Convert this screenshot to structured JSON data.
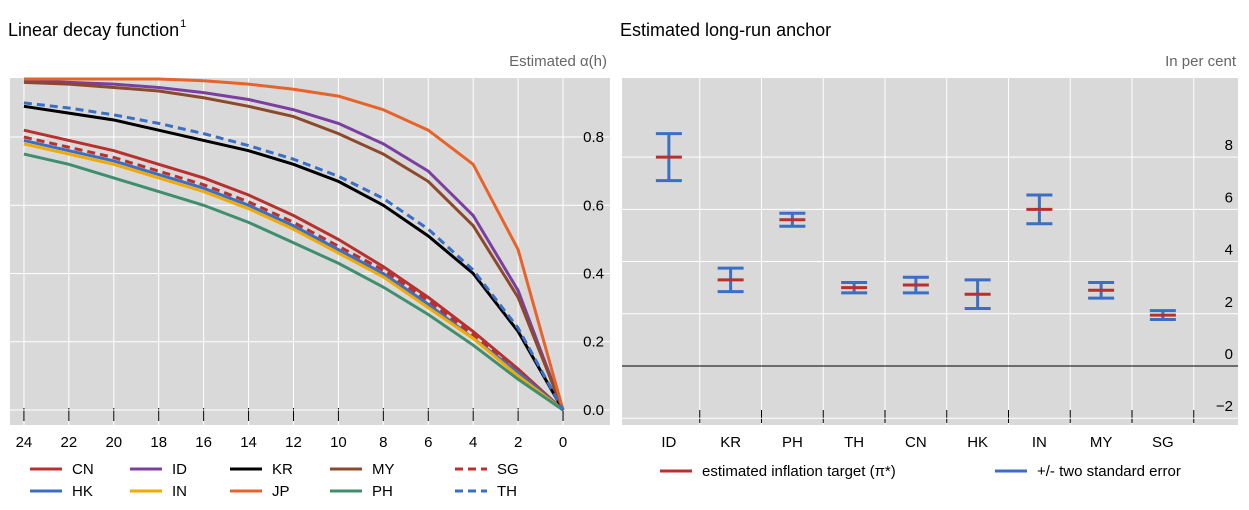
{
  "chart_data": [
    {
      "type": "line",
      "title": "Linear decay function",
      "title_note": "1",
      "y_label": "Estimated α(h)",
      "x": [
        24,
        22,
        20,
        18,
        16,
        14,
        12,
        10,
        8,
        6,
        4,
        2,
        0
      ],
      "xlim": [
        24.62,
        -2.09
      ],
      "xticks": [
        24,
        22,
        20,
        18,
        16,
        14,
        12,
        10,
        8,
        6,
        4,
        2,
        0
      ],
      "ylim": [
        -0.044,
        0.973
      ],
      "yticks": [
        {
          "value": 0,
          "label": "0.0"
        },
        0.2,
        0.4,
        0.6,
        0.8
      ],
      "grid": true,
      "legend": "bottom",
      "legend_columns": 5,
      "series": [
        {
          "name": "CN",
          "color": "#b8312f",
          "dash": false,
          "values": [
            0.82,
            0.79,
            0.76,
            0.72,
            0.68,
            0.63,
            0.57,
            0.5,
            0.42,
            0.33,
            0.23,
            0.12,
            0
          ]
        },
        {
          "name": "ID",
          "color": "#7b3fa0",
          "dash": false,
          "values": [
            0.965,
            0.96,
            0.955,
            0.945,
            0.93,
            0.91,
            0.88,
            0.84,
            0.78,
            0.7,
            0.57,
            0.35,
            0
          ]
        },
        {
          "name": "KR",
          "color": "#000000",
          "dash": false,
          "values": [
            0.89,
            0.87,
            0.85,
            0.82,
            0.79,
            0.76,
            0.72,
            0.67,
            0.6,
            0.51,
            0.4,
            0.23,
            0
          ]
        },
        {
          "name": "MY",
          "color": "#8b4a2b",
          "dash": false,
          "values": [
            0.96,
            0.955,
            0.945,
            0.935,
            0.915,
            0.89,
            0.86,
            0.81,
            0.75,
            0.67,
            0.54,
            0.33,
            0
          ]
        },
        {
          "name": "SG",
          "color": "#b8312f",
          "dash": true,
          "values": [
            0.8,
            0.77,
            0.74,
            0.7,
            0.66,
            0.61,
            0.55,
            0.48,
            0.41,
            0.32,
            0.22,
            0.11,
            0
          ]
        },
        {
          "name": "HK",
          "color": "#3a6fc4",
          "dash": false,
          "values": [
            0.79,
            0.76,
            0.73,
            0.69,
            0.65,
            0.6,
            0.54,
            0.47,
            0.4,
            0.31,
            0.21,
            0.11,
            0
          ]
        },
        {
          "name": "IN",
          "color": "#f2a900",
          "dash": false,
          "values": [
            0.78,
            0.75,
            0.72,
            0.68,
            0.64,
            0.59,
            0.53,
            0.46,
            0.39,
            0.3,
            0.21,
            0.1,
            0
          ]
        },
        {
          "name": "JP",
          "color": "#e8632a",
          "dash": false,
          "values": [
            0.97,
            0.97,
            0.97,
            0.97,
            0.965,
            0.955,
            0.94,
            0.92,
            0.88,
            0.82,
            0.72,
            0.47,
            0
          ]
        },
        {
          "name": "PH",
          "color": "#3f8f6e",
          "dash": false,
          "values": [
            0.75,
            0.72,
            0.68,
            0.64,
            0.6,
            0.55,
            0.49,
            0.43,
            0.36,
            0.28,
            0.19,
            0.09,
            0
          ]
        },
        {
          "name": "TH",
          "color": "#3a6fc4",
          "dash": true,
          "values": [
            0.9,
            0.885,
            0.865,
            0.84,
            0.81,
            0.775,
            0.735,
            0.685,
            0.62,
            0.53,
            0.41,
            0.24,
            0
          ]
        }
      ]
    },
    {
      "type": "errorbar",
      "title": "Estimated long-run anchor",
      "y_label": "In per cent",
      "categories": [
        "ID",
        "KR",
        "PH",
        "TH",
        "CN",
        "HK",
        "IN",
        "MY",
        "SG"
      ],
      "ylim": [
        -2.26,
        11.03
      ],
      "yticks": [
        {
          "value": -2,
          "label": "−2"
        },
        0,
        2,
        4,
        6,
        8
      ],
      "grid": true,
      "legend": "bottom",
      "series": [
        {
          "name": "estimated inflation target (π*)",
          "color": "#b8312f",
          "values": [
            8.0,
            3.3,
            5.6,
            3.0,
            3.1,
            2.75,
            6.0,
            2.9,
            1.95
          ]
        }
      ],
      "error": {
        "name": "+/- two standard error",
        "color": "#3a6fc4",
        "values": [
          0.9,
          0.45,
          0.25,
          0.2,
          0.3,
          0.55,
          0.55,
          0.3,
          0.17
        ]
      }
    }
  ]
}
